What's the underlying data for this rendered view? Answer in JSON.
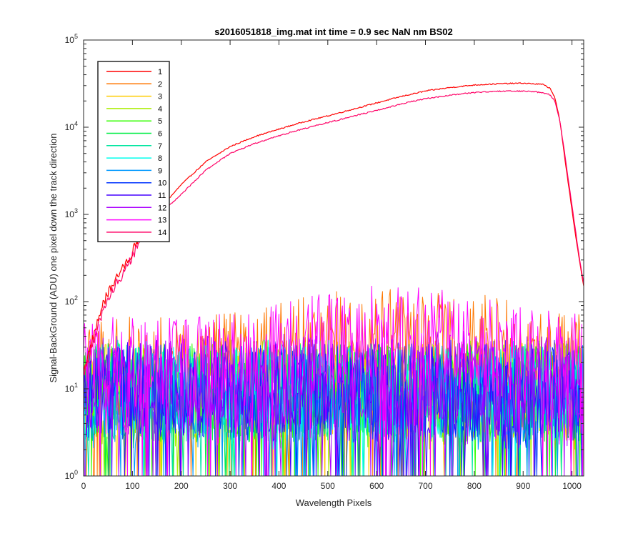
{
  "chart_data": {
    "type": "line",
    "title": "s2016051818_img.mat int time = 0.9 sec  NaN nm BS02",
    "xlabel": "Wavelength Pixels",
    "ylabel": "Signal-BackGround (ADU) one pixel down the track direction",
    "xlim": [
      0,
      1024
    ],
    "ylim": [
      1,
      100000
    ],
    "y_scale": "log",
    "x_ticks": [
      0,
      100,
      200,
      300,
      400,
      500,
      600,
      700,
      800,
      900,
      1000
    ],
    "x_tick_labels": [
      "0",
      "100",
      "200",
      "300",
      "400",
      "500",
      "600",
      "700",
      "800",
      "900",
      "1000"
    ],
    "y_ticks": [
      1,
      10,
      100,
      1000,
      10000,
      100000
    ],
    "y_tick_labels": [
      {
        "base": "10",
        "exp": "0"
      },
      {
        "base": "10",
        "exp": "1"
      },
      {
        "base": "10",
        "exp": "2"
      },
      {
        "base": "10",
        "exp": "3"
      },
      {
        "base": "10",
        "exp": "4"
      },
      {
        "base": "10",
        "exp": "5"
      }
    ],
    "grid": false,
    "legend_position": "top-left",
    "series": [
      {
        "name": "1",
        "color": "#ff0000",
        "kind": "signal",
        "level": 1.0,
        "noise": 0.015,
        "x": [
          0,
          10,
          20,
          40,
          60,
          80,
          100,
          120,
          150,
          200,
          250,
          300,
          350,
          400,
          450,
          500,
          550,
          600,
          650,
          700,
          750,
          800,
          850,
          900,
          940,
          955,
          965,
          975,
          985,
          995,
          1005,
          1015,
          1024
        ],
        "y": [
          17,
          25,
          40,
          95,
          160,
          240,
          380,
          620,
          1050,
          2200,
          4000,
          6000,
          7800,
          9500,
          11500,
          13500,
          16000,
          19000,
          22500,
          26000,
          28500,
          30500,
          31500,
          32000,
          31000,
          28000,
          22000,
          12000,
          4500,
          1800,
          700,
          300,
          150
        ]
      },
      {
        "name": "2",
        "color": "#ff7700",
        "kind": "noise",
        "center": 18,
        "bump": 2.5
      },
      {
        "name": "3",
        "color": "#ffcc00",
        "kind": "noise",
        "center": 10,
        "bump": 1.0
      },
      {
        "name": "4",
        "color": "#aaee00",
        "kind": "noise",
        "center": 10,
        "bump": 1.0
      },
      {
        "name": "5",
        "color": "#33ff00",
        "kind": "noise",
        "center": 9,
        "bump": 1.0
      },
      {
        "name": "6",
        "color": "#00ee44",
        "kind": "noise",
        "center": 9,
        "bump": 1.0
      },
      {
        "name": "7",
        "color": "#00e6a0",
        "kind": "noise",
        "center": 9,
        "bump": 1.0
      },
      {
        "name": "8",
        "color": "#00ffee",
        "kind": "noise",
        "center": 10,
        "bump": 1.0
      },
      {
        "name": "9",
        "color": "#0099ff",
        "kind": "noise",
        "center": 9,
        "bump": 1.0
      },
      {
        "name": "10",
        "color": "#0033ff",
        "kind": "noise",
        "center": 9,
        "bump": 1.0
      },
      {
        "name": "11",
        "color": "#4400ff",
        "kind": "noise",
        "center": 10,
        "bump": 1.0
      },
      {
        "name": "12",
        "color": "#aa00ff",
        "kind": "noise",
        "center": 11,
        "bump": 1.2
      },
      {
        "name": "13",
        "color": "#ff00ff",
        "kind": "noise",
        "center": 18,
        "bump": 2.4
      },
      {
        "name": "14",
        "color": "#ff0066",
        "kind": "signal",
        "level": 0.82,
        "noise": 0.015,
        "x": [
          0,
          10,
          20,
          40,
          60,
          80,
          100,
          120,
          150,
          200,
          250,
          300,
          350,
          400,
          450,
          500,
          550,
          600,
          650,
          700,
          750,
          800,
          850,
          900,
          940,
          955,
          965,
          975,
          985,
          995,
          1005,
          1015,
          1024
        ],
        "y": [
          15,
          22,
          35,
          80,
          140,
          210,
          330,
          560,
          920,
          1700,
          3200,
          5000,
          6500,
          8000,
          9600,
          11300,
          13300,
          15600,
          18500,
          21300,
          23300,
          25000,
          25800,
          26000,
          25000,
          23500,
          20000,
          12000,
          5000,
          2000,
          800,
          320,
          160
        ]
      }
    ]
  }
}
